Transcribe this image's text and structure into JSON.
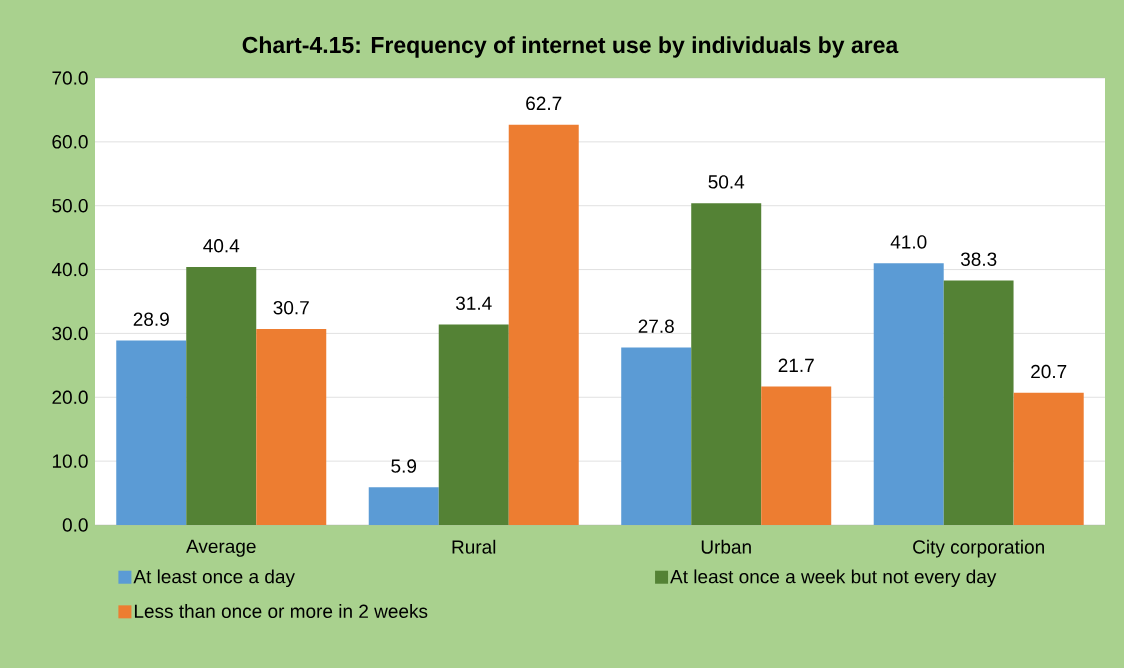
{
  "chart_data": {
    "type": "bar",
    "title": "Chart-4.15: Frequency of internet use by individuals by area",
    "categories": [
      "Average",
      "Rural",
      "Urban",
      "City corporation"
    ],
    "series": [
      {
        "name": "At least once a day",
        "color": "#5b9bd5",
        "values": [
          28.9,
          5.9,
          27.8,
          41.0
        ],
        "value_labels": [
          "28.9",
          "5.9",
          "27.8",
          "41.0"
        ]
      },
      {
        "name": "At least once a week but not every day",
        "color": "#548235",
        "values": [
          40.4,
          31.4,
          50.4,
          38.3
        ],
        "value_labels": [
          "40.4",
          "31.4",
          "50.4",
          "38.3"
        ]
      },
      {
        "name": "Less than once or more in 2 weeks",
        "color": "#ed7d31",
        "values": [
          30.7,
          62.7,
          21.7,
          20.7
        ],
        "value_labels": [
          "30.7",
          "62.7",
          "21.7",
          "20.7"
        ]
      }
    ],
    "ylim": [
      0,
      70
    ],
    "yticks": [
      {
        "value": 0,
        "label": "0.0"
      },
      {
        "value": 10,
        "label": "10.0"
      },
      {
        "value": 20,
        "label": "20.0"
      },
      {
        "value": 30,
        "label": "30.0"
      },
      {
        "value": 40,
        "label": "40.0"
      },
      {
        "value": 50,
        "label": "50.0"
      },
      {
        "value": 60,
        "label": "60.0"
      },
      {
        "value": 70,
        "label": "70.0"
      }
    ],
    "grid": "y",
    "legend": "bottom"
  }
}
